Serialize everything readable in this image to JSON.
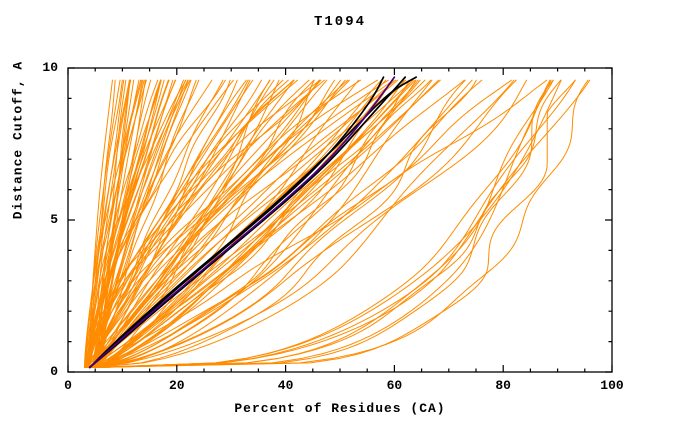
{
  "page": {
    "background": "#ffffff"
  },
  "chart_data": {
    "type": "line",
    "title": "T1094",
    "xlabel": "Percent of Residues (CA)",
    "ylabel": "Distance Cutoff, A",
    "xlim": [
      0,
      100
    ],
    "ylim": [
      0,
      10
    ],
    "x_major_ticks": [
      0,
      20,
      40,
      60,
      80,
      100
    ],
    "x_minor_step": 5,
    "y_major_ticks": [
      0,
      5,
      10
    ],
    "y_minor_step": 1,
    "grid": false,
    "legend": "none",
    "frame_color": "#000000",
    "text_color": "#000000",
    "series_summary": {
      "orange_ensemble_curves": 120,
      "black_highlight_curves": 3,
      "blue_highlight_curves": 1
    },
    "ensemble": {
      "name": "predicted-models-ensemble",
      "color": "#ff8c00",
      "count": 120,
      "seed": 1094,
      "y_start": 0.15,
      "y_end": 9.7,
      "x_start_range": [
        3,
        6
      ],
      "groups": [
        {
          "weight": 0.32,
          "top_x_range": [
            8,
            30
          ],
          "exp_range": [
            1.0,
            1.8
          ]
        },
        {
          "weight": 0.38,
          "top_x_range": [
            30,
            65
          ],
          "exp_range": [
            0.7,
            1.6
          ]
        },
        {
          "weight": 0.22,
          "top_x_range": [
            62,
            90
          ],
          "exp_range": [
            0.5,
            1.0
          ]
        },
        {
          "weight": 0.08,
          "top_x_range": [
            88,
            97
          ],
          "exp_range": [
            0.18,
            0.4
          ]
        }
      ]
    },
    "highlight_series": [
      {
        "name": "black-model-1",
        "color": "#000000",
        "width": 1.7,
        "points": [
          [
            4,
            0.15
          ],
          [
            8,
            0.8
          ],
          [
            14,
            1.8
          ],
          [
            21,
            2.9
          ],
          [
            29,
            4.1
          ],
          [
            37,
            5.3
          ],
          [
            45,
            6.6
          ],
          [
            51,
            7.8
          ],
          [
            56,
            9.0
          ],
          [
            58,
            9.7
          ]
        ]
      },
      {
        "name": "black-model-2",
        "color": "#000000",
        "width": 1.7,
        "points": [
          [
            4,
            0.15
          ],
          [
            9,
            0.9
          ],
          [
            16,
            2.0
          ],
          [
            24,
            3.2
          ],
          [
            32,
            4.4
          ],
          [
            40,
            5.6
          ],
          [
            48,
            6.9
          ],
          [
            54,
            8.1
          ],
          [
            60,
            9.3
          ],
          [
            62,
            9.7
          ]
        ]
      },
      {
        "name": "black-model-3",
        "color": "#000000",
        "width": 1.7,
        "points": [
          [
            4,
            0.15
          ],
          [
            7,
            0.7
          ],
          [
            13,
            1.7
          ],
          [
            20,
            2.8
          ],
          [
            28,
            4.0
          ],
          [
            36,
            5.2
          ],
          [
            44,
            6.5
          ],
          [
            52,
            7.9
          ],
          [
            59,
            9.2
          ],
          [
            64,
            9.7
          ]
        ]
      },
      {
        "name": "blue-model",
        "color": "#4b0082",
        "width": 1.7,
        "points": [
          [
            4,
            0.15
          ],
          [
            8,
            0.8
          ],
          [
            15,
            1.9
          ],
          [
            23,
            3.1
          ],
          [
            31,
            4.3
          ],
          [
            39,
            5.5
          ],
          [
            47,
            6.8
          ],
          [
            53,
            8.0
          ],
          [
            58,
            9.2
          ],
          [
            60,
            9.7
          ]
        ]
      }
    ]
  }
}
